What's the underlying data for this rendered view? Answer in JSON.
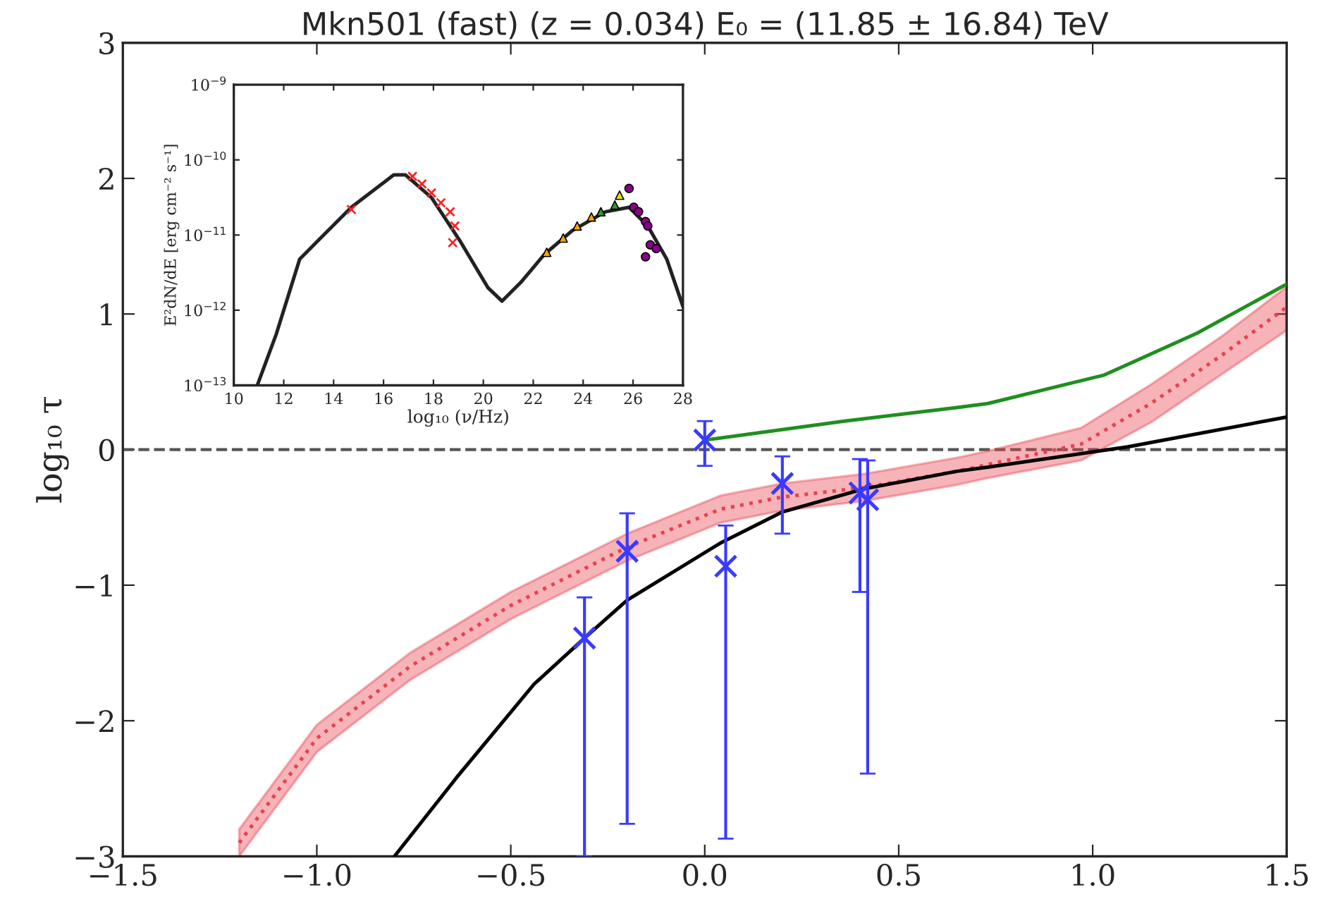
{
  "chart_data": [
    {
      "type": "line",
      "title": "Mkn501 (fast) (z = 0.034) E₀ = (11.85 ± 16.84) TeV",
      "ylabel": "log₁₀ τ",
      "xlim": [
        -1.5,
        1.5
      ],
      "ylim": [
        -3,
        3
      ],
      "xticks": [
        {
          "value": -1.5,
          "label": "−1.5"
        },
        {
          "value": -1.0,
          "label": "−1.0"
        },
        {
          "value": -0.5,
          "label": "−0.5"
        },
        {
          "value": 0,
          "label": "0.0"
        },
        {
          "value": 0.5,
          "label": "0.5"
        },
        {
          "value": 1.0,
          "label": "1.0"
        },
        {
          "value": 1.5,
          "label": "1.5"
        }
      ],
      "yticks": [
        {
          "value": -3,
          "label": "−3"
        },
        {
          "value": -2,
          "label": "−2"
        },
        {
          "value": -1,
          "label": "−1"
        },
        0,
        1,
        2,
        3
      ],
      "ref_lines": [
        {
          "axis": "y",
          "value": 0,
          "color": "#555555",
          "line_style": "dashed"
        }
      ],
      "series": [
        {
          "color": "#e8414e",
          "line_style": "dotted",
          "x": [
            -1.2,
            -1.0,
            -0.76,
            -0.5,
            -0.2,
            0.04,
            0.2,
            0.41,
            0.65,
            0.73,
            0.97,
            1.15,
            1.33,
            1.5
          ],
          "values": [
            -2.9,
            -2.13,
            -1.6,
            -1.15,
            -0.72,
            -0.44,
            -0.35,
            -0.28,
            -0.16,
            -0.11,
            0.04,
            0.34,
            0.69,
            1.05
          ],
          "lower": [
            -3.0,
            -2.23,
            -1.7,
            -1.25,
            -0.82,
            -0.54,
            -0.45,
            -0.38,
            -0.26,
            -0.21,
            -0.08,
            0.2,
            0.55,
            0.88
          ],
          "upper": [
            -2.8,
            -2.03,
            -1.5,
            -1.05,
            -0.62,
            -0.34,
            -0.25,
            -0.18,
            -0.06,
            -0.01,
            0.16,
            0.48,
            0.83,
            1.2
          ]
        },
        {
          "color": "#000000",
          "x": [
            -0.8,
            -0.64,
            -0.44,
            -0.31,
            -0.2,
            0.04,
            0.2,
            0.41,
            0.65,
            0.73,
            1.09,
            1.5
          ],
          "values": [
            -3.0,
            -2.42,
            -1.73,
            -1.39,
            -1.11,
            -0.69,
            -0.46,
            -0.29,
            -0.16,
            -0.13,
            0.02,
            0.24
          ]
        },
        {
          "color": "#1f8f1f",
          "x": [
            0.0,
            0.36,
            0.65,
            0.73,
            1.03,
            1.27,
            1.5
          ],
          "values": [
            0.07,
            0.21,
            0.31,
            0.34,
            0.55,
            0.86,
            1.22
          ]
        },
        {
          "type": "scatter",
          "color": "#3a3aff",
          "marker": "cross",
          "x": [
            -0.31,
            -0.2,
            0.0,
            0.054,
            0.2,
            0.4,
            0.42
          ],
          "values": [
            -1.39,
            -0.75,
            0.07,
            -0.86,
            -0.25,
            -0.32,
            -0.37
          ],
          "errors": [
            [
              -3.0,
              -1.09
            ],
            [
              -2.76,
              -0.47
            ],
            [
              -0.12,
              0.21
            ],
            [
              -2.87,
              -0.56
            ],
            [
              -0.62,
              -0.05
            ],
            [
              -1.05,
              -0.07
            ],
            [
              -2.39,
              -0.08
            ]
          ]
        }
      ]
    },
    {
      "type": "line",
      "xlabel": "log₁₀ (ν/Hz)",
      "ylabel": "E²dN/dE [erg cm⁻² s⁻¹]",
      "log": "y",
      "xlim": [
        10,
        28
      ],
      "ylim": [
        1e-13,
        1e-09
      ],
      "xticks": [
        10,
        12,
        14,
        16,
        18,
        20,
        22,
        24,
        26,
        28
      ],
      "yticks": [
        {
          "value": 1e-13,
          "label": "10$^{−13}$"
        },
        {
          "value": 1e-12,
          "label": "10$^{−12}$"
        },
        {
          "value": 1e-11,
          "label": "10$^{−11}$"
        },
        {
          "value": 1e-10,
          "label": "10$^{−10}$"
        },
        {
          "value": 1e-09,
          "label": "10$^{−9}$"
        }
      ],
      "series": [
        {
          "color": "#222222",
          "x": [
            10.94,
            11.7,
            12.64,
            13.39,
            14.71,
            16.41,
            16.88,
            17.92,
            19.05,
            20.18,
            20.75,
            21.5,
            22.44,
            23.57,
            24.89,
            25.84,
            26.59,
            27.35,
            28.0
          ],
          "values": [
            1e-13,
            4.79e-13,
            4.79e-12,
            8.51e-12,
            2.34e-11,
            6.31e-11,
            6.31e-11,
            3.16e-11,
            8.51e-12,
            2e-12,
            1.32e-12,
            2.34e-12,
            5.5e-12,
            1.15e-11,
            2.04e-11,
            2.34e-11,
            1.32e-11,
            4.79e-12,
            1.12e-12
          ]
        },
        {
          "type": "scatter",
          "color": "#ff2020",
          "marker": "cross",
          "x": [
            14.71,
            17.16,
            17.54,
            17.92,
            18.3,
            18.67,
            18.86,
            18.77
          ],
          "values": [
            2.19e-11,
            6.03e-11,
            4.79e-11,
            3.63e-11,
            2.69e-11,
            2.04e-11,
            1.32e-11,
            7.94e-12
          ]
        },
        {
          "type": "scatter",
          "color": "#ffa500",
          "marker": "triangle",
          "x": [
            22.54,
            23.2,
            23.76,
            24.33
          ],
          "values": [
            5.89e-12,
            9.12e-12,
            1.32e-11,
            1.74e-11
          ]
        },
        {
          "type": "scatter",
          "color": "#2e9a2e",
          "marker": "triangle",
          "x": [
            24.71,
            25.27
          ],
          "values": [
            2.04e-11,
            2.51e-11
          ]
        },
        {
          "type": "scatter",
          "color": "#e6e600",
          "marker": "triangle",
          "x": [
            25.46
          ],
          "values": [
            3.39e-11
          ]
        },
        {
          "type": "scatter",
          "color": "#8b008b",
          "marker": "circle",
          "x": [
            25.84,
            26.03,
            26.22,
            26.5,
            26.59,
            26.69,
            26.5,
            26.93
          ],
          "values": [
            4.17e-11,
            2.34e-11,
            2.04e-11,
            1.51e-11,
            1.32e-11,
            7.41e-12,
            5.13e-12,
            6.61e-12
          ]
        }
      ]
    }
  ]
}
